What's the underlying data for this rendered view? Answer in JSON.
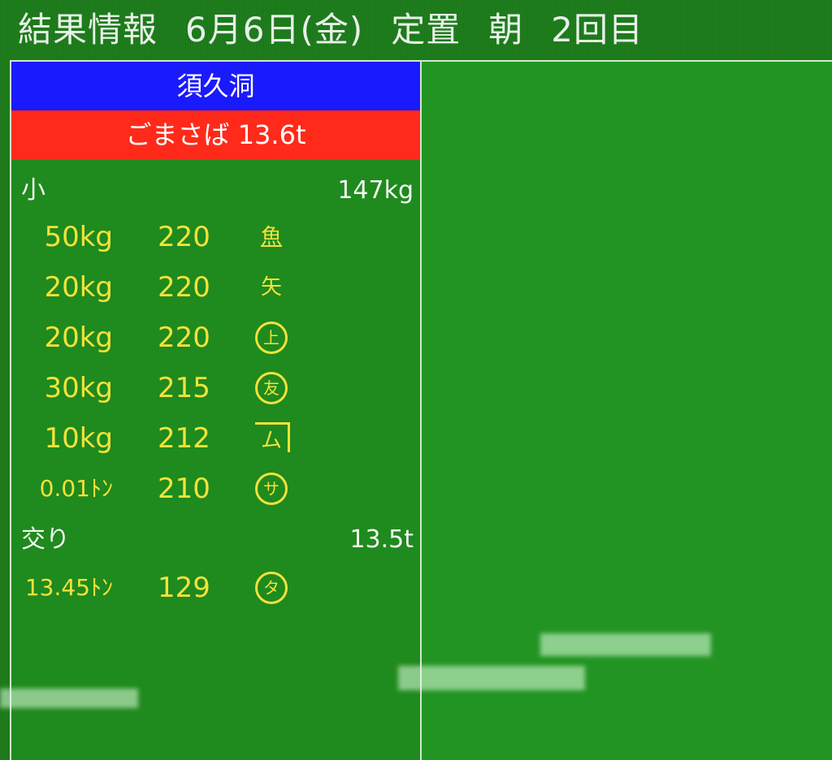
{
  "header": {
    "title": "結果情報",
    "date": "6月6日(金)",
    "type": "定置",
    "session": "朝",
    "round": "2回目"
  },
  "colors": {
    "port_bar": "#1a1aff",
    "fish_bar": "#ff2a1a",
    "background": "#1f8a1e",
    "price_text": "#f3e23a"
  },
  "port": "須久洞",
  "fish": {
    "name": "ごまさば",
    "total": "13.6t"
  },
  "categories": [
    {
      "label": "小",
      "weight": "147kg",
      "rows": [
        {
          "weight": "50kg",
          "price": "220",
          "mark": "魚"
        },
        {
          "weight": "20kg",
          "price": "220",
          "mark": "矢"
        },
        {
          "weight": "20kg",
          "price": "220",
          "mark": "上"
        },
        {
          "weight": "30kg",
          "price": "215",
          "mark": "友"
        },
        {
          "weight": "10kg",
          "price": "212",
          "mark": "ム"
        },
        {
          "weight": "0.01ﾄﾝ",
          "price": "210",
          "mark": "サ"
        }
      ]
    },
    {
      "label": "交り",
      "weight": "13.5t",
      "rows": [
        {
          "weight": "13.45ﾄﾝ",
          "price": "129",
          "mark": "タ"
        }
      ]
    }
  ]
}
